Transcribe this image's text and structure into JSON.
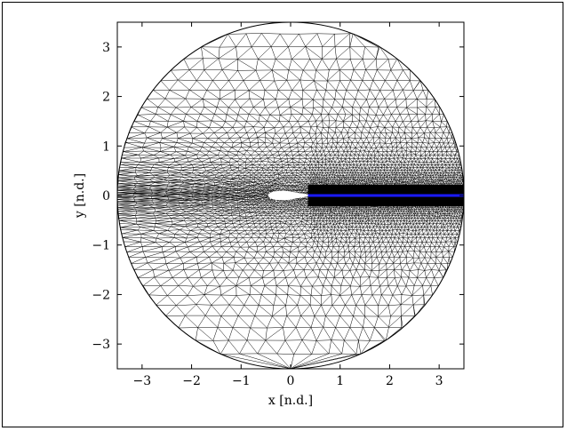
{
  "chart_data": {
    "type": "mesh",
    "x_axis": {
      "label": "x [n.d.]",
      "lim": [
        -3.5,
        3.5
      ],
      "ticks": [
        -3,
        -2,
        -1,
        0,
        1,
        2,
        3
      ],
      "tick_labels": [
        "−3",
        "−2",
        "−1",
        "0",
        "1",
        "2",
        "3"
      ]
    },
    "y_axis": {
      "label": "y [n.d.]",
      "lim": [
        -3.5,
        3.5
      ],
      "ticks": [
        -3,
        -2,
        -1,
        0,
        1,
        2,
        3
      ],
      "tick_labels": [
        "−3",
        "−2",
        "−1",
        "0",
        "1",
        "2",
        "3"
      ]
    },
    "domain": {
      "shape": "circle",
      "center": [
        0,
        0
      ],
      "radius": 3.5
    },
    "body": {
      "shape": "airfoil",
      "leading_edge_x": -0.45,
      "trailing_edge_x": 0.35
    },
    "wake_line": {
      "from": [
        0.35,
        0
      ],
      "to": [
        3.5,
        0
      ],
      "color": "#1a1aff"
    },
    "mesh_color": "#000000"
  }
}
